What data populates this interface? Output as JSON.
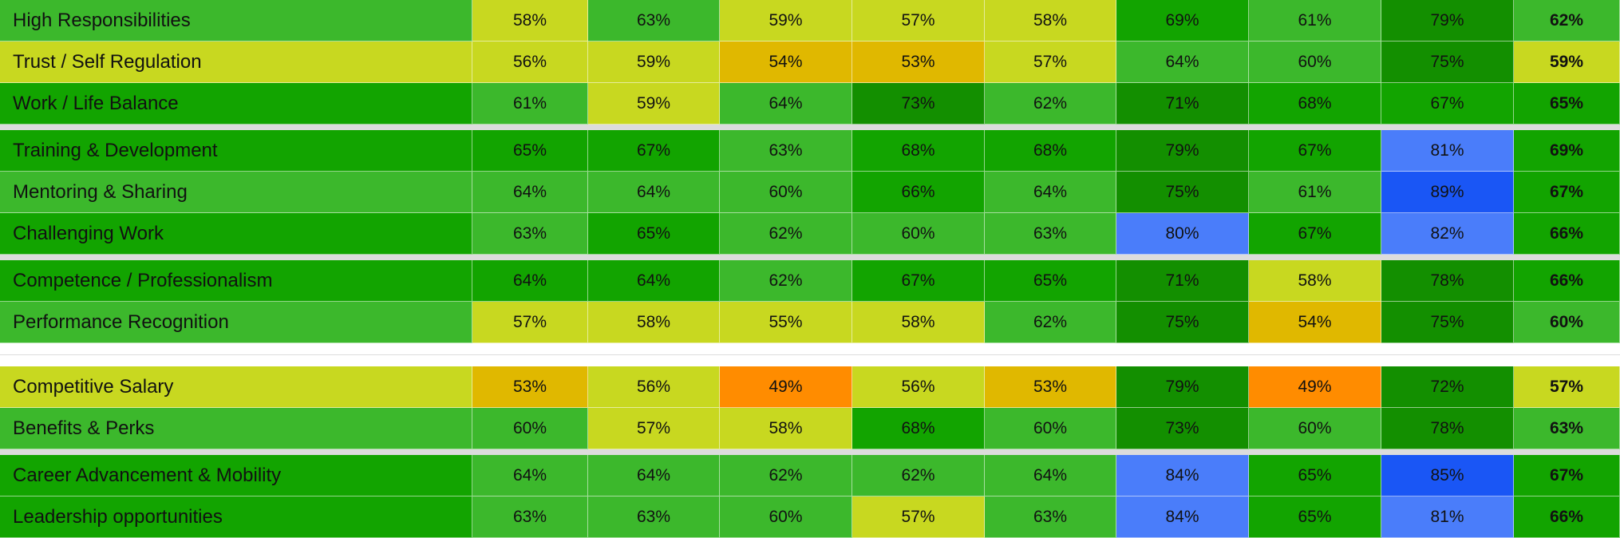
{
  "table": {
    "groups": [
      {
        "rows": [
          {
            "label": "High Responsibilities",
            "label_color": "#3cb82c",
            "values": [
              "58%",
              "63%",
              "59%",
              "57%",
              "58%",
              "69%",
              "61%",
              "79%",
              "62%"
            ],
            "colors": [
              "#c8d820",
              "#3cb82c",
              "#c8d820",
              "#c8d820",
              "#c8d820",
              "#12a400",
              "#3cb82c",
              "#138f00",
              "#3cb82c"
            ]
          },
          {
            "label": "Trust / Self Regulation",
            "label_color": "#c8d820",
            "values": [
              "56%",
              "59%",
              "54%",
              "53%",
              "57%",
              "64%",
              "60%",
              "75%",
              "59%"
            ],
            "colors": [
              "#c8d820",
              "#c8d820",
              "#e0b800",
              "#e0b800",
              "#c8d820",
              "#3cb82c",
              "#3cb82c",
              "#138f00",
              "#c8d820"
            ]
          },
          {
            "label": "Work / Life Balance",
            "label_color": "#12a400",
            "values": [
              "61%",
              "59%",
              "64%",
              "73%",
              "62%",
              "71%",
              "68%",
              "67%",
              "65%"
            ],
            "colors": [
              "#3cb82c",
              "#c8d820",
              "#3cb82c",
              "#138f00",
              "#3cb82c",
              "#138f00",
              "#12a400",
              "#12a400",
              "#12a400"
            ]
          }
        ]
      },
      {
        "rows": [
          {
            "label": "Training & Development",
            "label_color": "#12a400",
            "values": [
              "65%",
              "67%",
              "63%",
              "68%",
              "68%",
              "79%",
              "67%",
              "81%",
              "69%"
            ],
            "colors": [
              "#12a400",
              "#12a400",
              "#3cb82c",
              "#12a400",
              "#12a400",
              "#138f00",
              "#12a400",
              "#4a7dfa",
              "#12a400"
            ]
          },
          {
            "label": "Mentoring & Sharing",
            "label_color": "#3cb82c",
            "values": [
              "64%",
              "64%",
              "60%",
              "66%",
              "64%",
              "75%",
              "61%",
              "89%",
              "67%"
            ],
            "colors": [
              "#3cb82c",
              "#3cb82c",
              "#3cb82c",
              "#12a400",
              "#3cb82c",
              "#138f00",
              "#3cb82c",
              "#1a56f5",
              "#12a400"
            ]
          },
          {
            "label": "Challenging Work",
            "label_color": "#12a400",
            "values": [
              "63%",
              "65%",
              "62%",
              "60%",
              "63%",
              "80%",
              "67%",
              "82%",
              "66%"
            ],
            "colors": [
              "#3cb82c",
              "#12a400",
              "#3cb82c",
              "#3cb82c",
              "#3cb82c",
              "#4a7dfa",
              "#12a400",
              "#4a7dfa",
              "#12a400"
            ]
          }
        ]
      },
      {
        "rows": [
          {
            "label": "Competence / Professionalism",
            "label_color": "#12a400",
            "values": [
              "64%",
              "64%",
              "62%",
              "67%",
              "65%",
              "71%",
              "58%",
              "78%",
              "66%"
            ],
            "colors": [
              "#12a400",
              "#12a400",
              "#3cb82c",
              "#12a400",
              "#12a400",
              "#138f00",
              "#c8d820",
              "#138f00",
              "#12a400"
            ]
          },
          {
            "label": "Performance Recognition",
            "label_color": "#3cb82c",
            "values": [
              "57%",
              "58%",
              "55%",
              "58%",
              "62%",
              "75%",
              "54%",
              "75%",
              "60%"
            ],
            "colors": [
              "#c8d820",
              "#c8d820",
              "#c8d820",
              "#c8d820",
              "#3cb82c",
              "#138f00",
              "#e0b800",
              "#138f00",
              "#3cb82c"
            ]
          }
        ]
      },
      {
        "rows": [
          {
            "label": "Competitive Salary",
            "label_color": "#c8d820",
            "values": [
              "53%",
              "56%",
              "49%",
              "56%",
              "53%",
              "79%",
              "49%",
              "72%",
              "57%"
            ],
            "colors": [
              "#e0b800",
              "#c8d820",
              "#ff8c00",
              "#c8d820",
              "#e0b800",
              "#138f00",
              "#ff8c00",
              "#138f00",
              "#c8d820"
            ]
          },
          {
            "label": "Benefits & Perks",
            "label_color": "#3cb82c",
            "values": [
              "60%",
              "57%",
              "58%",
              "68%",
              "60%",
              "73%",
              "60%",
              "78%",
              "63%"
            ],
            "colors": [
              "#3cb82c",
              "#c8d820",
              "#c8d820",
              "#12a400",
              "#3cb82c",
              "#138f00",
              "#3cb82c",
              "#138f00",
              "#3cb82c"
            ]
          }
        ]
      },
      {
        "rows": [
          {
            "label": "Career Advancement & Mobility",
            "label_color": "#12a400",
            "values": [
              "64%",
              "64%",
              "62%",
              "62%",
              "64%",
              "84%",
              "65%",
              "85%",
              "67%"
            ],
            "colors": [
              "#3cb82c",
              "#3cb82c",
              "#3cb82c",
              "#3cb82c",
              "#3cb82c",
              "#4a7dfa",
              "#12a400",
              "#1a56f5",
              "#12a400"
            ]
          },
          {
            "label": "Leadership opportunities",
            "label_color": "#12a400",
            "values": [
              "63%",
              "63%",
              "60%",
              "57%",
              "63%",
              "84%",
              "65%",
              "81%",
              "66%"
            ],
            "colors": [
              "#3cb82c",
              "#3cb82c",
              "#3cb82c",
              "#c8d820",
              "#3cb82c",
              "#4a7dfa",
              "#12a400",
              "#4a7dfa",
              "#12a400"
            ]
          }
        ]
      }
    ]
  }
}
